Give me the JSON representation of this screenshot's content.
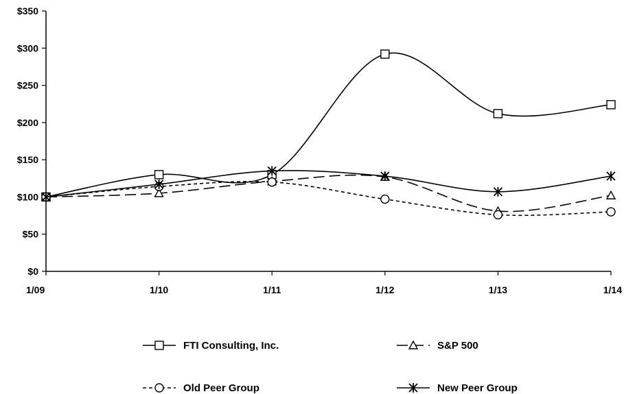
{
  "chart_data": {
    "type": "line",
    "title": "",
    "xlabel": "",
    "ylabel": "",
    "categories": [
      "1/09",
      "1/10",
      "1/11",
      "1/12",
      "1/13",
      "1/14"
    ],
    "ylim": [
      0,
      350
    ],
    "yticks": [
      "$0",
      "$50",
      "$100",
      "$150",
      "$200",
      "$250",
      "$300",
      "$350"
    ],
    "grid": false,
    "legend_position": "bottom",
    "series": [
      {
        "name": "FTI Consulting, Inc.",
        "values": [
          100,
          130,
          130,
          292,
          212,
          224
        ],
        "marker": "square",
        "dash": "solid"
      },
      {
        "name": "S&P 500",
        "values": [
          100,
          105,
          121,
          127,
          81,
          102
        ],
        "marker": "triangle",
        "dash": "long-dash"
      },
      {
        "name": "Old Peer Group",
        "values": [
          100,
          114,
          120,
          97,
          76,
          80
        ],
        "marker": "circle",
        "dash": "short-dash"
      },
      {
        "name": "New Peer Group",
        "values": [
          100,
          117,
          135,
          128,
          107,
          128
        ],
        "marker": "asterisk",
        "dash": "solid"
      }
    ]
  }
}
